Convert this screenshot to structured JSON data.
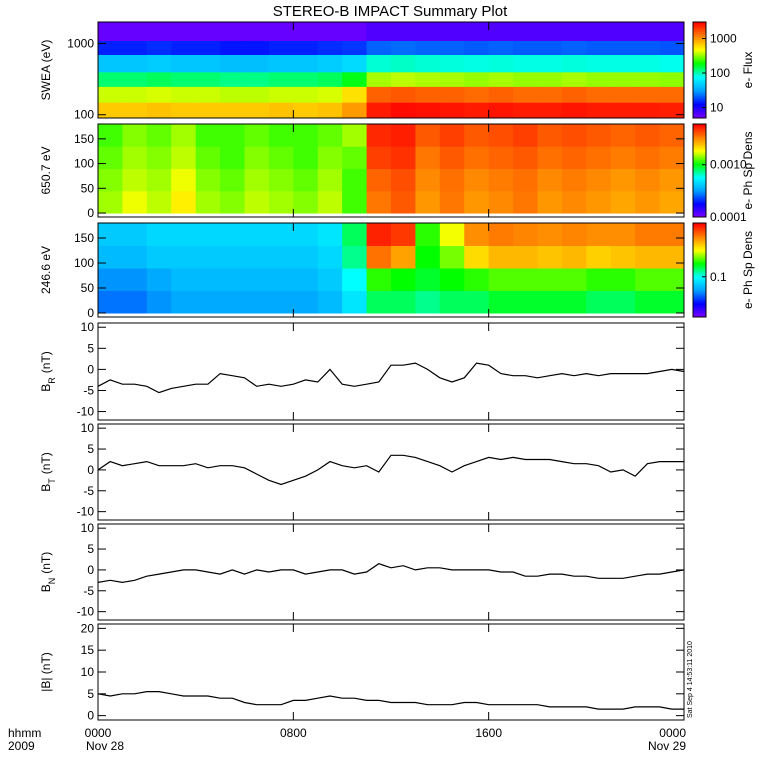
{
  "title": "STEREO-B IMPACT Summary Plot",
  "x_axis": {
    "xlim": [
      0,
      24
    ],
    "xticks": [
      {
        "value": 0,
        "label": "0000"
      },
      {
        "value": 8,
        "label": "0800"
      },
      {
        "value": 16,
        "label": "1600"
      },
      {
        "value": 24,
        "label": "0000"
      }
    ],
    "label": "hhmm",
    "year": "2009",
    "dates": [
      "Nov 28",
      "Nov 29"
    ]
  },
  "colormap": [
    "#7f00ff",
    "#0000ff",
    "#00a0ff",
    "#00ffff",
    "#00ff00",
    "#ffff00",
    "#ff8000",
    "#ff0000"
  ],
  "stamp": "Sat Sep  4 14:53:11 2010",
  "chart_data": [
    {
      "type": "heatmap",
      "ylabel": "SWEA (eV)",
      "ylog": true,
      "ylim": [
        90,
        2000
      ],
      "yticks": [
        100,
        1000
      ],
      "zlabel": "e- Flux",
      "zlog": true,
      "zlim": [
        5,
        3000
      ],
      "zticks": [
        10,
        100,
        1000
      ],
      "xbins": [
        0,
        1,
        2,
        3,
        4,
        5,
        6,
        7,
        8,
        9,
        10,
        11,
        12,
        13,
        14,
        15,
        16,
        17,
        18,
        19,
        20,
        21,
        22,
        23,
        24
      ],
      "ybins": [
        90,
        150,
        250,
        400,
        700,
        1100,
        2000
      ],
      "values": [
        [
          700,
          700,
          750,
          700,
          700,
          700,
          700,
          750,
          700,
          750,
          1000,
          2500,
          2800,
          2700,
          2600,
          2500,
          2600,
          2500,
          2500,
          2600,
          2500,
          2500,
          2500,
          2400
        ],
        [
          400,
          400,
          420,
          400,
          400,
          380,
          380,
          400,
          400,
          420,
          600,
          1500,
          1600,
          1500,
          1500,
          1400,
          1500,
          1400,
          1400,
          1500,
          1400,
          1400,
          1400,
          1400
        ],
        [
          130,
          130,
          140,
          130,
          130,
          120,
          120,
          130,
          130,
          140,
          180,
          350,
          380,
          360,
          350,
          330,
          350,
          330,
          330,
          350,
          330,
          330,
          330,
          320
        ],
        [
          45,
          45,
          48,
          45,
          45,
          42,
          42,
          45,
          45,
          48,
          55,
          90,
          95,
          90,
          88,
          85,
          88,
          85,
          85,
          88,
          85,
          85,
          85,
          82
        ],
        [
          15,
          15,
          16,
          15,
          15,
          14,
          14,
          15,
          15,
          16,
          17,
          22,
          23,
          22,
          22,
          21,
          22,
          21,
          21,
          22,
          21,
          21,
          21,
          20
        ],
        [
          6,
          6,
          6,
          6,
          6,
          6,
          6,
          6,
          6,
          6,
          6,
          7,
          7,
          7,
          7,
          7,
          7,
          7,
          7,
          7,
          7,
          7,
          7,
          7
        ]
      ]
    },
    {
      "type": "heatmap",
      "ylabel": "650.7 eV",
      "ylim": [
        -8,
        180
      ],
      "yticks": [
        0,
        50,
        100,
        150
      ],
      "zlabel": "e- Ph Sp Dens",
      "zlog": true,
      "zlim": [
        0.0001,
        0.006
      ],
      "zticks": [
        0.0001,
        {
          "value": 0.001,
          "label": "0.0010"
        }
      ],
      "xbins": [
        0,
        1,
        2,
        3,
        4,
        5,
        6,
        7,
        8,
        9,
        10,
        11,
        12,
        13,
        14,
        15,
        16,
        17,
        18,
        19,
        20,
        21,
        22,
        23,
        24
      ],
      "ybins": [
        0,
        45,
        90,
        135,
        180
      ],
      "values": [
        [
          0.0015,
          0.0018,
          0.0016,
          0.002,
          0.0015,
          0.0014,
          0.0016,
          0.0015,
          0.0014,
          0.0016,
          0.0012,
          0.0035,
          0.004,
          0.003,
          0.0035,
          0.003,
          0.0032,
          0.0035,
          0.003,
          0.0032,
          0.003,
          0.0028,
          0.003,
          0.0028
        ],
        [
          0.0014,
          0.0016,
          0.0015,
          0.0018,
          0.0014,
          0.0013,
          0.0015,
          0.0014,
          0.0013,
          0.0015,
          0.0012,
          0.0038,
          0.0042,
          0.0032,
          0.0036,
          0.0032,
          0.0034,
          0.0036,
          0.0032,
          0.0034,
          0.0032,
          0.003,
          0.0032,
          0.003
        ],
        [
          0.0013,
          0.0015,
          0.0014,
          0.0016,
          0.0013,
          0.0012,
          0.0014,
          0.0013,
          0.0012,
          0.0014,
          0.0013,
          0.0045,
          0.0048,
          0.0035,
          0.004,
          0.0036,
          0.0038,
          0.004,
          0.0036,
          0.0038,
          0.0036,
          0.0034,
          0.0036,
          0.0034
        ],
        [
          0.0012,
          0.0014,
          0.0013,
          0.0015,
          0.0012,
          0.0012,
          0.0013,
          0.0012,
          0.0012,
          0.0013,
          0.0015,
          0.005,
          0.0052,
          0.004,
          0.0045,
          0.004,
          0.0042,
          0.0045,
          0.004,
          0.0042,
          0.004,
          0.0038,
          0.004,
          0.0038
        ]
      ]
    },
    {
      "type": "heatmap",
      "ylabel": "246.6 eV",
      "ylim": [
        -8,
        180
      ],
      "yticks": [
        0,
        50,
        100,
        150
      ],
      "zlabel": "e- Ph Sp Dens",
      "zlog": true,
      "zlim": [
        0.03,
        0.5
      ],
      "zticks": [
        0.1
      ],
      "xbins": [
        0,
        1,
        2,
        3,
        4,
        5,
        6,
        7,
        8,
        9,
        10,
        11,
        12,
        13,
        14,
        15,
        16,
        17,
        18,
        19,
        20,
        21,
        22,
        23,
        24
      ],
      "ybins": [
        0,
        45,
        90,
        135,
        180
      ],
      "values": [
        [
          0.06,
          0.06,
          0.065,
          0.07,
          0.07,
          0.07,
          0.07,
          0.07,
          0.07,
          0.075,
          0.09,
          0.13,
          0.13,
          0.12,
          0.13,
          0.13,
          0.14,
          0.14,
          0.14,
          0.14,
          0.13,
          0.13,
          0.14,
          0.14
        ],
        [
          0.065,
          0.065,
          0.07,
          0.075,
          0.075,
          0.075,
          0.075,
          0.075,
          0.075,
          0.08,
          0.1,
          0.16,
          0.15,
          0.14,
          0.15,
          0.16,
          0.17,
          0.17,
          0.17,
          0.17,
          0.16,
          0.16,
          0.17,
          0.17
        ],
        [
          0.075,
          0.075,
          0.08,
          0.08,
          0.08,
          0.08,
          0.08,
          0.08,
          0.08,
          0.085,
          0.12,
          0.35,
          0.3,
          0.15,
          0.18,
          0.25,
          0.28,
          0.28,
          0.27,
          0.28,
          0.26,
          0.27,
          0.28,
          0.28
        ],
        [
          0.08,
          0.08,
          0.085,
          0.085,
          0.085,
          0.085,
          0.085,
          0.085,
          0.085,
          0.09,
          0.13,
          0.45,
          0.42,
          0.16,
          0.22,
          0.32,
          0.34,
          0.33,
          0.32,
          0.33,
          0.32,
          0.32,
          0.34,
          0.34
        ]
      ]
    },
    {
      "type": "line",
      "ylabel": "B",
      "ylabel_sub": "R",
      "ylabel_unit": "(nT)",
      "ylim": [
        -12,
        11
      ],
      "yticks": [
        -10,
        -5,
        0,
        5,
        10
      ],
      "color": "#000000",
      "x": [
        0,
        0.5,
        1,
        1.5,
        2,
        2.5,
        3,
        3.5,
        4,
        4.5,
        5,
        5.5,
        6,
        6.5,
        7,
        7.5,
        8,
        8.5,
        9,
        9.5,
        10,
        10.5,
        11,
        11.5,
        12,
        12.5,
        13,
        13.5,
        14,
        14.5,
        15,
        15.5,
        16,
        16.5,
        17,
        17.5,
        18,
        18.5,
        19,
        19.5,
        20,
        20.5,
        21,
        21.5,
        22,
        22.5,
        23,
        23.5,
        24
      ],
      "values": [
        -4,
        -2.5,
        -3.5,
        -3.5,
        -4,
        -5.5,
        -4.5,
        -4,
        -3.5,
        -3.5,
        -1,
        -1.5,
        -2,
        -4,
        -3.5,
        -4,
        -3.5,
        -2.5,
        -3,
        0,
        -3.5,
        -4,
        -3.5,
        -3,
        1,
        1,
        1.5,
        0,
        -2,
        -3,
        -2,
        1.5,
        1,
        -1,
        -1.5,
        -1.5,
        -2,
        -1.5,
        -1,
        -1.5,
        -1,
        -1.5,
        -1,
        -1,
        -1,
        -1,
        -0.5,
        0,
        -0.5
      ]
    },
    {
      "type": "line",
      "ylabel": "B",
      "ylabel_sub": "T",
      "ylabel_unit": "(nT)",
      "ylim": [
        -12,
        11
      ],
      "yticks": [
        -10,
        -5,
        0,
        5,
        10
      ],
      "color": "#000000",
      "x": [
        0,
        0.5,
        1,
        1.5,
        2,
        2.5,
        3,
        3.5,
        4,
        4.5,
        5,
        5.5,
        6,
        6.5,
        7,
        7.5,
        8,
        8.5,
        9,
        9.5,
        10,
        10.5,
        11,
        11.5,
        12,
        12.5,
        13,
        13.5,
        14,
        14.5,
        15,
        15.5,
        16,
        16.5,
        17,
        17.5,
        18,
        18.5,
        19,
        19.5,
        20,
        20.5,
        21,
        21.5,
        22,
        22.5,
        23,
        23.5,
        24
      ],
      "values": [
        0,
        2,
        1,
        1.5,
        2,
        1,
        1,
        1,
        1.5,
        0.5,
        1,
        1,
        0.5,
        -1,
        -2.5,
        -3.5,
        -2.5,
        -1.5,
        0,
        2,
        1,
        0.5,
        1,
        -0.5,
        3.5,
        3.5,
        3,
        2,
        1,
        -0.5,
        1,
        2,
        3,
        2.5,
        3,
        2.5,
        2.5,
        2.5,
        2,
        1.5,
        1.5,
        1,
        -0.5,
        0,
        -1.5,
        1.5,
        2,
        2,
        2
      ]
    },
    {
      "type": "line",
      "ylabel": "B",
      "ylabel_sub": "N",
      "ylabel_unit": "(nT)",
      "ylim": [
        -12,
        11
      ],
      "yticks": [
        -10,
        -5,
        0,
        5,
        10
      ],
      "color": "#000000",
      "x": [
        0,
        0.5,
        1,
        1.5,
        2,
        2.5,
        3,
        3.5,
        4,
        4.5,
        5,
        5.5,
        6,
        6.5,
        7,
        7.5,
        8,
        8.5,
        9,
        9.5,
        10,
        10.5,
        11,
        11.5,
        12,
        12.5,
        13,
        13.5,
        14,
        14.5,
        15,
        15.5,
        16,
        16.5,
        17,
        17.5,
        18,
        18.5,
        19,
        19.5,
        20,
        20.5,
        21,
        21.5,
        22,
        22.5,
        23,
        23.5,
        24
      ],
      "values": [
        -3,
        -2.5,
        -3,
        -2.5,
        -1.5,
        -1,
        -0.5,
        0,
        0,
        -0.5,
        -1,
        0,
        -1,
        0,
        -0.5,
        0,
        0,
        -1,
        -0.5,
        0,
        0,
        -1,
        -0.5,
        1.5,
        0.5,
        1,
        0,
        0.5,
        0.5,
        0,
        0,
        0,
        0,
        -0.5,
        -0.5,
        -1.5,
        -1.5,
        -1,
        -1,
        -1.5,
        -1.5,
        -2,
        -2,
        -2,
        -1.5,
        -1,
        -1,
        -0.5,
        0
      ]
    },
    {
      "type": "line",
      "ylabel": "|B| (nT)",
      "ylim": [
        -1,
        21
      ],
      "yticks": [
        0,
        5,
        10,
        15,
        20
      ],
      "color": "#000000",
      "x": [
        0,
        0.5,
        1,
        1.5,
        2,
        2.5,
        3,
        3.5,
        4,
        4.5,
        5,
        5.5,
        6,
        6.5,
        7,
        7.5,
        8,
        8.5,
        9,
        9.5,
        10,
        10.5,
        11,
        11.5,
        12,
        12.5,
        13,
        13.5,
        14,
        14.5,
        15,
        15.5,
        16,
        16.5,
        17,
        17.5,
        18,
        18.5,
        19,
        19.5,
        20,
        20.5,
        21,
        21.5,
        22,
        22.5,
        23,
        23.5,
        24
      ],
      "values": [
        5,
        4.5,
        5,
        5,
        5.5,
        5.5,
        5,
        4.5,
        4.5,
        4.5,
        4,
        4,
        3,
        2.5,
        2.5,
        2.5,
        3.5,
        3.5,
        4,
        4.5,
        4,
        4,
        3.5,
        3.5,
        3,
        3,
        3,
        2.5,
        2.5,
        2.5,
        3,
        3,
        2.5,
        2.5,
        2.5,
        2.5,
        2.5,
        2,
        2,
        2,
        2,
        1.5,
        1.5,
        1.5,
        2,
        2,
        2,
        1.5,
        1.5
      ]
    }
  ]
}
